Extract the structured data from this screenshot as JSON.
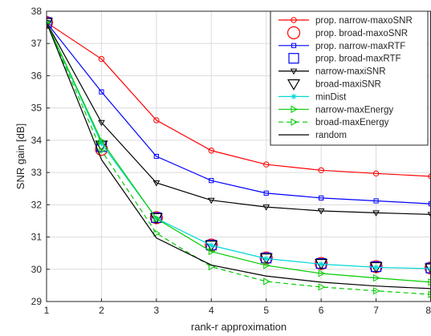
{
  "chart_data": {
    "type": "line",
    "title": "",
    "xlabel": "rank-r approximation",
    "ylabel": "SNR gain [dB]",
    "xlim": [
      1,
      8
    ],
    "ylim": [
      29,
      38
    ],
    "xticks": [
      "1",
      "2",
      "3",
      "4",
      "5",
      "6",
      "7",
      "8"
    ],
    "yticks": [
      "29",
      "30",
      "31",
      "32",
      "33",
      "34",
      "35",
      "36",
      "37",
      "38"
    ],
    "grid": true,
    "legend_position": "top-right",
    "x": [
      1,
      2,
      3,
      4,
      5,
      6,
      7,
      8
    ],
    "series": [
      {
        "name": "prop. narrow-maxoSNR",
        "color": "#ff0000",
        "marker": "circle-small",
        "dash": "solid",
        "values": [
          37.65,
          36.52,
          34.62,
          33.68,
          33.25,
          33.07,
          32.97,
          32.88
        ]
      },
      {
        "name": "prop. broad-maxoSNR",
        "color": "#ff0000",
        "marker": "circle-large",
        "dash": "none",
        "values": [
          37.65,
          33.72,
          31.6,
          30.75,
          30.35,
          30.18,
          30.08,
          30.04
        ]
      },
      {
        "name": "prop. narrow-maxRTF",
        "color": "#0000ff",
        "marker": "square-small",
        "dash": "solid",
        "values": [
          37.65,
          35.5,
          33.5,
          32.75,
          32.36,
          32.21,
          32.12,
          32.03
        ]
      },
      {
        "name": "prop. broad-maxRTF",
        "color": "#0000ff",
        "marker": "square-large",
        "dash": "none",
        "values": [
          37.65,
          33.8,
          31.6,
          30.75,
          30.35,
          30.18,
          30.08,
          30.04
        ]
      },
      {
        "name": "narrow-maxiSNR",
        "color": "#000000",
        "marker": "triangle-down-small",
        "dash": "solid",
        "values": [
          37.65,
          34.55,
          32.68,
          32.14,
          31.93,
          31.81,
          31.75,
          31.7
        ]
      },
      {
        "name": "broad-maxiSNR",
        "color": "#000000",
        "marker": "triangle-down-large",
        "dash": "none",
        "values": [
          37.65,
          33.85,
          31.6,
          30.75,
          30.35,
          30.18,
          30.08,
          30.04
        ]
      },
      {
        "name": "minDist",
        "color": "#00d8d8",
        "marker": "star",
        "dash": "solid",
        "values": [
          37.65,
          33.9,
          31.58,
          30.74,
          30.33,
          30.16,
          30.06,
          30.02
        ]
      },
      {
        "name": "narrow-maxEnergy",
        "color": "#00cc00",
        "marker": "triangle-right-small",
        "dash": "solid",
        "values": [
          37.65,
          33.98,
          31.57,
          30.55,
          30.12,
          29.87,
          29.73,
          29.6
        ]
      },
      {
        "name": "broad-maxEnergy",
        "color": "#00cc00",
        "marker": "triangle-right-small",
        "dash": "dashed",
        "values": [
          37.65,
          33.68,
          31.12,
          30.08,
          29.62,
          29.45,
          29.33,
          29.22
        ]
      },
      {
        "name": "random",
        "color": "#000000",
        "marker": "none",
        "dash": "solid",
        "values": [
          37.65,
          33.4,
          30.97,
          30.13,
          29.79,
          29.6,
          29.48,
          29.4
        ]
      }
    ]
  }
}
